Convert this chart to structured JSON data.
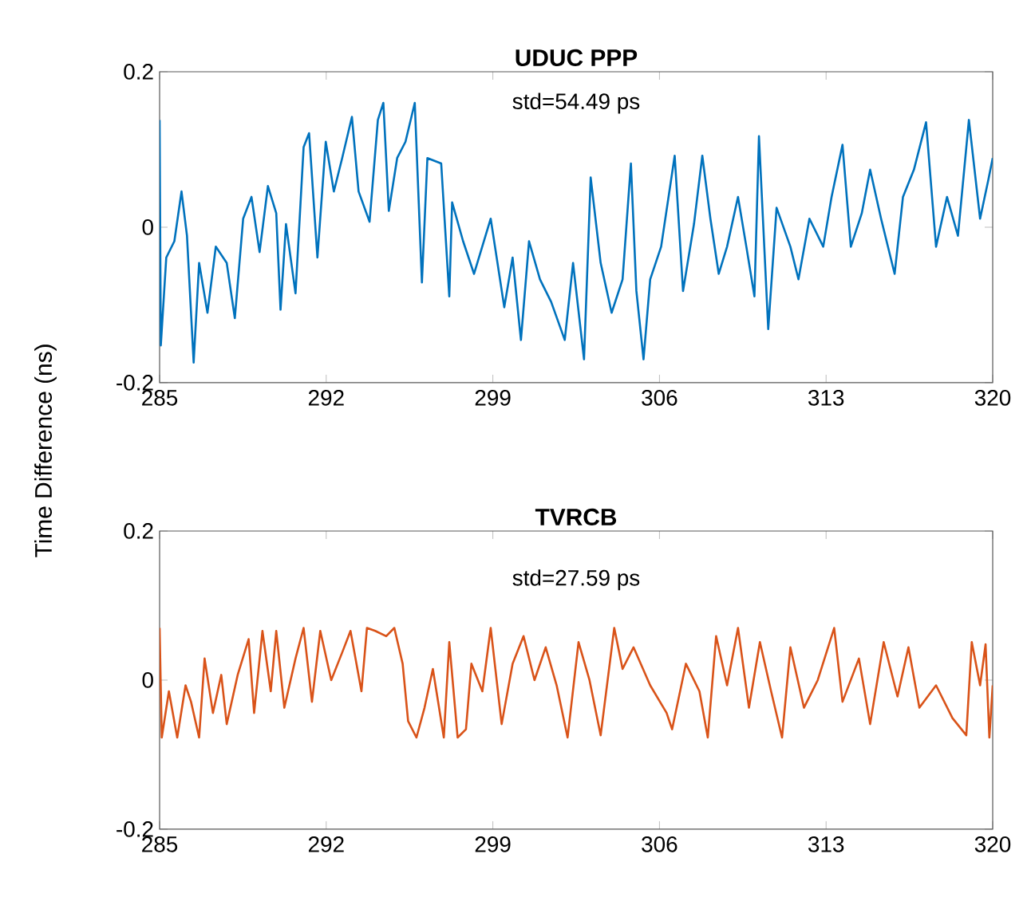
{
  "chart_data": [
    {
      "type": "line",
      "title": "**UDUC PPP**",
      "ylabel": "Time Difference (ns)",
      "annotations": [
        "std=54.49 ps"
      ],
      "color": "#0072bd",
      "xlim": [
        285,
        320
      ],
      "xticks": [
        285,
        292,
        299,
        306,
        313,
        320
      ],
      "ylim": [
        -0.2,
        0.2
      ],
      "yticks": [
        -0.2,
        0,
        0.2
      ],
      "x": [
        285.0,
        285.05,
        285.28,
        285.62,
        285.92,
        286.15,
        286.43,
        286.66,
        287.01,
        287.36,
        287.82,
        288.16,
        288.51,
        288.86,
        289.2,
        289.55,
        289.9,
        290.08,
        290.31,
        290.71,
        291.05,
        291.28,
        291.63,
        291.98,
        292.32,
        292.67,
        293.08,
        293.36,
        293.82,
        294.17,
        294.4,
        294.63,
        294.98,
        295.33,
        295.72,
        296.02,
        296.25,
        296.83,
        297.17,
        297.29,
        297.75,
        298.21,
        298.91,
        299.48,
        299.83,
        300.18,
        300.52,
        300.98,
        301.45,
        302.02,
        302.37,
        302.83,
        303.11,
        303.53,
        303.99,
        304.45,
        304.8,
        305.03,
        305.33,
        305.61,
        306.07,
        306.64,
        306.99,
        307.45,
        307.8,
        308.14,
        308.49,
        308.84,
        309.3,
        309.65,
        309.99,
        310.18,
        310.57,
        310.92,
        311.5,
        311.84,
        312.3,
        312.88,
        313.23,
        313.69,
        314.04,
        314.5,
        314.85,
        315.31,
        315.88,
        316.23,
        316.69,
        317.2,
        317.62,
        318.08,
        318.54,
        319.0,
        319.47,
        319.81,
        320.0
      ],
      "values": [
        0.138,
        -0.152,
        -0.039,
        -0.018,
        0.046,
        -0.011,
        -0.174,
        -0.046,
        -0.11,
        -0.025,
        -0.046,
        -0.117,
        0.011,
        0.039,
        -0.032,
        0.053,
        0.018,
        -0.106,
        0.004,
        -0.085,
        0.103,
        0.121,
        -0.039,
        0.11,
        0.046,
        0.089,
        0.142,
        0.046,
        0.007,
        0.138,
        0.16,
        0.021,
        0.089,
        0.11,
        0.16,
        -0.071,
        0.089,
        0.082,
        -0.089,
        0.032,
        -0.018,
        -0.06,
        0.011,
        -0.103,
        -0.039,
        -0.145,
        -0.018,
        -0.067,
        -0.096,
        -0.145,
        -0.046,
        -0.17,
        0.064,
        -0.046,
        -0.11,
        -0.067,
        0.082,
        -0.082,
        -0.17,
        -0.067,
        -0.025,
        0.092,
        -0.082,
        0.004,
        0.092,
        0.011,
        -0.06,
        -0.025,
        0.039,
        -0.025,
        -0.089,
        0.117,
        -0.131,
        0.025,
        -0.025,
        -0.067,
        0.011,
        -0.025,
        0.039,
        0.106,
        -0.025,
        0.018,
        0.074,
        0.011,
        -0.06,
        0.039,
        0.074,
        0.135,
        -0.025,
        0.039,
        -0.011,
        0.138,
        0.011,
        0.06,
        0.089
      ]
    },
    {
      "type": "line",
      "title": "**TVRCB**",
      "annotations": [
        "std=27.59 ps"
      ],
      "color": "#d95319",
      "xlim": [
        285,
        320
      ],
      "xticks": [
        285,
        292,
        299,
        306,
        313,
        320
      ],
      "ylim": [
        -0.2,
        0.2
      ],
      "yticks": [
        -0.2,
        0,
        0.2
      ],
      "x": [
        285.0,
        285.09,
        285.39,
        285.74,
        286.09,
        286.32,
        286.66,
        286.89,
        287.24,
        287.59,
        287.82,
        288.28,
        288.74,
        288.97,
        289.32,
        289.67,
        289.9,
        290.24,
        290.71,
        291.05,
        291.4,
        291.75,
        292.21,
        292.67,
        293.02,
        293.48,
        293.71,
        294.06,
        294.52,
        294.86,
        295.21,
        295.44,
        295.79,
        296.13,
        296.48,
        296.94,
        297.17,
        297.52,
        297.87,
        298.1,
        298.56,
        298.91,
        299.37,
        299.83,
        300.29,
        300.75,
        301.22,
        301.68,
        302.14,
        302.6,
        303.06,
        303.53,
        304.1,
        304.45,
        304.91,
        305.61,
        306.3,
        306.53,
        307.11,
        307.68,
        308.03,
        308.38,
        308.84,
        309.3,
        309.76,
        310.22,
        310.69,
        311.15,
        311.5,
        312.07,
        312.65,
        313.34,
        313.69,
        314.38,
        314.85,
        315.42,
        316.0,
        316.46,
        316.92,
        317.62,
        318.31,
        318.89,
        319.12,
        319.47,
        319.7,
        319.86,
        320.0
      ],
      "values": [
        0.07,
        -0.077,
        -0.015,
        -0.077,
        -0.007,
        -0.029,
        -0.077,
        0.029,
        -0.044,
        0.007,
        -0.059,
        0.007,
        0.055,
        -0.044,
        0.066,
        -0.015,
        0.066,
        -0.037,
        0.029,
        0.07,
        -0.029,
        0.066,
        0.0,
        0.037,
        0.066,
        -0.015,
        0.07,
        0.066,
        0.059,
        0.07,
        0.022,
        -0.055,
        -0.077,
        -0.037,
        0.015,
        -0.077,
        0.051,
        -0.077,
        -0.066,
        0.022,
        -0.015,
        0.07,
        -0.059,
        0.022,
        0.059,
        0.0,
        0.044,
        -0.007,
        -0.077,
        0.051,
        0.0,
        -0.074,
        0.07,
        0.015,
        0.044,
        -0.007,
        -0.044,
        -0.066,
        0.022,
        -0.015,
        -0.077,
        0.059,
        -0.007,
        0.07,
        -0.037,
        0.051,
        -0.015,
        -0.077,
        0.044,
        -0.037,
        0.0,
        0.07,
        -0.029,
        0.029,
        -0.059,
        0.051,
        -0.022,
        0.044,
        -0.037,
        -0.007,
        -0.051,
        -0.074,
        0.051,
        -0.007,
        0.048,
        -0.077,
        -0.007
      ]
    }
  ]
}
